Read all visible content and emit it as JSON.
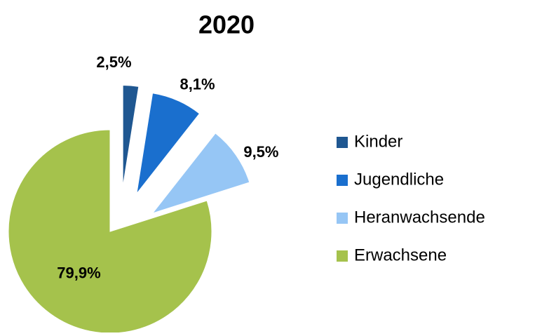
{
  "chart_data": {
    "type": "pie",
    "title": "2020",
    "categories": [
      "Kinder",
      "Jugendliche",
      "Heranwachsende",
      "Erwachsene"
    ],
    "values": [
      2.5,
      8.1,
      9.5,
      79.9
    ],
    "value_labels": [
      "2,5%",
      "8,1%",
      "9,5%",
      "79,9%"
    ],
    "colors": [
      "#1f5791",
      "#1a6fce",
      "#96c6f5",
      "#a5c24c"
    ],
    "legend": "right"
  }
}
